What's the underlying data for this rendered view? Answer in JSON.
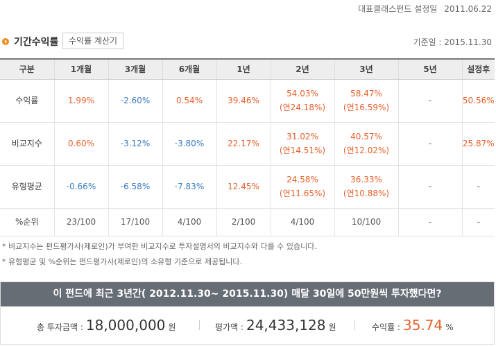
{
  "top": {
    "label": "대표클래스펀드 설정일",
    "date": "2011.06.22"
  },
  "section": {
    "title": "기간수익률",
    "calc_button": "수익률 계산기",
    "base_date": "기준일 : 2015.11.30"
  },
  "table": {
    "headers": [
      "구분",
      "1개월",
      "3개월",
      "6개월",
      "1년",
      "2년",
      "3년",
      "5년",
      "설정후"
    ],
    "rows": [
      {
        "label": "수익률",
        "cells": [
          {
            "v": "1.99%",
            "t": "pos"
          },
          {
            "v": "-2.60%",
            "t": "neg"
          },
          {
            "v": "0.54%",
            "t": "pos"
          },
          {
            "v": "39.46%",
            "t": "pos"
          },
          {
            "v": "54.03%",
            "s": "(연24.18%)",
            "t": "pos"
          },
          {
            "v": "58.47%",
            "s": "(연16.59%)",
            "t": "pos"
          },
          {
            "v": "-",
            "t": "neu"
          },
          {
            "v": "50.56%",
            "t": "pos"
          }
        ]
      },
      {
        "label": "비교지수",
        "cells": [
          {
            "v": "0.60%",
            "t": "pos"
          },
          {
            "v": "-3.12%",
            "t": "neg"
          },
          {
            "v": "-3.80%",
            "t": "neg"
          },
          {
            "v": "22.17%",
            "t": "pos"
          },
          {
            "v": "31.02%",
            "s": "(연14.51%)",
            "t": "pos"
          },
          {
            "v": "40.57%",
            "s": "(연12.02%)",
            "t": "pos"
          },
          {
            "v": "-",
            "t": "neu"
          },
          {
            "v": "25.87%",
            "t": "pos"
          }
        ]
      },
      {
        "label": "유형평균",
        "cells": [
          {
            "v": "-0.66%",
            "t": "neg"
          },
          {
            "v": "-6.58%",
            "t": "neg"
          },
          {
            "v": "-7.83%",
            "t": "neg"
          },
          {
            "v": "12.45%",
            "t": "pos"
          },
          {
            "v": "24.58%",
            "s": "(연11.65%)",
            "t": "pos"
          },
          {
            "v": "36.33%",
            "s": "(연10.88%)",
            "t": "pos"
          },
          {
            "v": "-",
            "t": "neu"
          },
          {
            "v": "-",
            "t": "neu"
          }
        ]
      },
      {
        "label": "%순위",
        "cells": [
          {
            "v": "23/100",
            "t": "neu"
          },
          {
            "v": "17/100",
            "t": "neu"
          },
          {
            "v": "4/100",
            "t": "neu"
          },
          {
            "v": "2/100",
            "t": "neu"
          },
          {
            "v": "4/100",
            "t": "neu"
          },
          {
            "v": "10/100",
            "t": "neu"
          },
          {
            "v": "-",
            "t": "neu"
          },
          {
            "v": "-",
            "t": "neu"
          }
        ]
      }
    ]
  },
  "notes": [
    "* 비교지수는 펀드평가사(제로인)가 부여한 비교지수로 투자설명서의 비교지수와 다를 수 있습니다.",
    "* 유형평균 및 %순위는 펀드평가사(제로인)의 소유형 기준으로 제공됩니다."
  ],
  "simulation": {
    "headline": "이 펀드에 최근 3년간( 2012.11.30~ 2015.11.30) 매달 30일에 50만원씩 투자했다면?",
    "total_label": "총 투자금액 :",
    "total_value": "18,000,000",
    "total_unit": "원",
    "eval_label": "평가액 :",
    "eval_value": "24,433,128",
    "eval_unit": "원",
    "return_label": "수익률 :",
    "return_value": "35.74",
    "return_unit": "%"
  },
  "colors": {
    "positive": "#e8612c",
    "negative": "#3a7dc1",
    "header_bar": "#676d75",
    "bullet": "#f08a1c"
  },
  "icons": {
    "bullet": "circle-chevron-right-icon"
  }
}
